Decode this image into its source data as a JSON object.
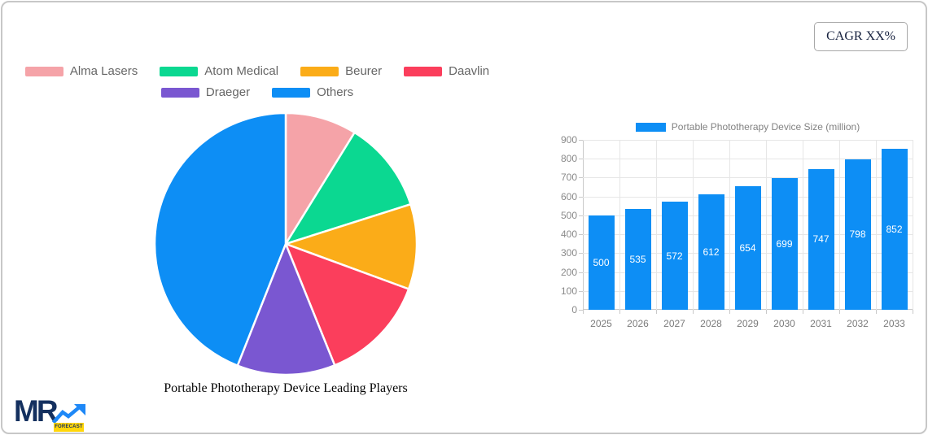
{
  "cagr_badge": {
    "label": "CAGR XX%"
  },
  "logo": {
    "text": "MR",
    "badge": "FORECAST"
  },
  "colors": {
    "accent_blue": "#0D8EF5",
    "card_border": "#C7C7C7",
    "legend_text": "#666666",
    "axis_text": "#8A8A8A",
    "grid_line": "#E6E6E6",
    "bar_value_text": "#FFFFFF",
    "logo_navy": "#14305F",
    "logo_blue": "#1E88F7",
    "logo_yellow": "#FFD60A"
  },
  "chart_data": [
    {
      "type": "pie",
      "title": "Portable Phototherapy Device Leading Players",
      "labels": [
        "Alma Lasers",
        "Atom Medical",
        "Beurer",
        "Daavlin",
        "Draeger",
        "Others"
      ],
      "values": [
        8.8,
        11.3,
        10.5,
        13.3,
        12.1,
        44.0
      ],
      "colors": [
        "#F5A3A8",
        "#0BD891",
        "#FBAC18",
        "#FB3E5C",
        "#7A57D1",
        "#0D8EF5"
      ],
      "legend_rows": [
        [
          "Alma Lasers",
          "Atom Medical",
          "Beurer",
          "Daavlin"
        ],
        [
          "Draeger",
          "Others"
        ]
      ],
      "legend_position": "top",
      "slice_border_color": "#FFFFFF"
    },
    {
      "type": "bar",
      "title": "Portable Phototherapy Device Size (million)",
      "categories": [
        "2025",
        "2026",
        "2027",
        "2028",
        "2029",
        "2030",
        "2031",
        "2032",
        "2033"
      ],
      "values": [
        500,
        535,
        572,
        612,
        654,
        699,
        747,
        798,
        852
      ],
      "ylim": [
        0,
        900
      ],
      "ytick_step": 100,
      "yticks": [
        0,
        100,
        200,
        300,
        400,
        500,
        600,
        700,
        800,
        900
      ],
      "grid": true,
      "legend_position": "top",
      "bar_color": "#0D8EF5",
      "value_label_position": "inside-center"
    }
  ]
}
